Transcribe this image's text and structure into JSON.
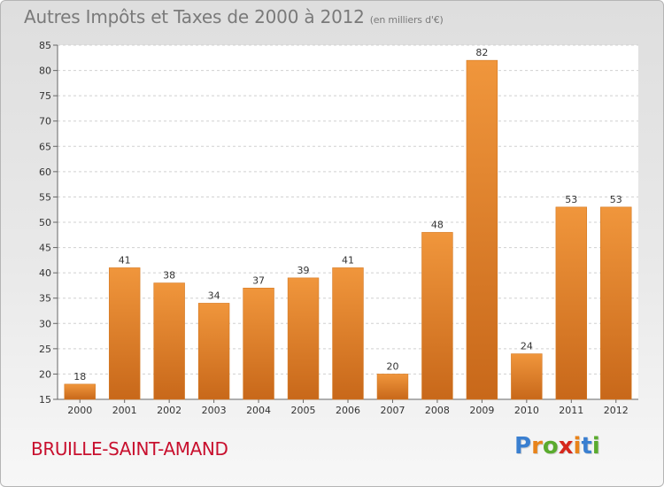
{
  "header": {
    "title": "Autres Impôts et Taxes de 2000 à 2012",
    "unit": "(en milliers d'€)"
  },
  "footer": {
    "town": "BRUILLE-SAINT-AMAND",
    "brand_letters": [
      "P",
      "r",
      "o",
      "x",
      "i",
      "t",
      "i"
    ],
    "brand_colors": [
      "#3a7fd0",
      "#e8831a",
      "#5aab2e",
      "#d6271c",
      "#e8831a",
      "#3a7fd0",
      "#5aab2e"
    ]
  },
  "chart_data": {
    "type": "bar",
    "title": "Autres Impôts et Taxes de 2000 à 2012",
    "xlabel": "",
    "ylabel": "",
    "categories": [
      "2000",
      "2001",
      "2002",
      "2003",
      "2004",
      "2005",
      "2006",
      "2007",
      "2008",
      "2009",
      "2010",
      "2011",
      "2012"
    ],
    "values": [
      18,
      41,
      38,
      34,
      37,
      39,
      41,
      20,
      48,
      82,
      24,
      53,
      53
    ],
    "ylim": [
      15,
      85
    ],
    "yticks": [
      15,
      20,
      25,
      30,
      35,
      40,
      45,
      50,
      55,
      60,
      65,
      70,
      75,
      80,
      85
    ],
    "grid": "horizontal-dashed",
    "bar_color": "#f0963c",
    "bar_color_dark": "#c8681a"
  }
}
